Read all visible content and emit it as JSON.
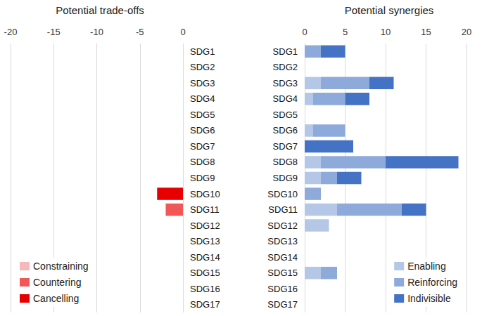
{
  "chart_data": [
    {
      "type": "bar",
      "title": "Potential trade-offs",
      "orientation": "horizontal",
      "stacked": true,
      "categories": [
        "SDG1",
        "SDG2",
        "SDG3",
        "SDG4",
        "SDG5",
        "SDG6",
        "SDG7",
        "SDG8",
        "SDG9",
        "SDG10",
        "SDG11",
        "SDG12",
        "SDG13",
        "SDG14",
        "SDG15",
        "SDG16",
        "SDG17"
      ],
      "series": [
        {
          "name": "Constraining",
          "color": "#f6b8b8",
          "values": [
            0,
            0,
            0,
            0,
            0,
            0,
            0,
            0,
            0,
            0,
            0,
            0,
            0,
            0,
            0,
            0,
            0
          ]
        },
        {
          "name": "Countering",
          "color": "#f25757",
          "values": [
            0,
            0,
            0,
            0,
            0,
            0,
            0,
            0,
            0,
            0,
            -2,
            0,
            0,
            0,
            0,
            0,
            0
          ]
        },
        {
          "name": "Cancelling",
          "color": "#e60000",
          "values": [
            0,
            0,
            0,
            0,
            0,
            0,
            0,
            0,
            0,
            -3,
            0,
            0,
            0,
            0,
            0,
            0,
            0
          ]
        }
      ],
      "xlim": [
        -20,
        0
      ],
      "xticks": [
        -20,
        -15,
        -10,
        -5,
        0
      ],
      "grid": true,
      "legend": "lower left"
    },
    {
      "type": "bar",
      "title": "Potential synergies",
      "orientation": "horizontal",
      "stacked": true,
      "categories": [
        "SDG1",
        "SDG2",
        "SDG3",
        "SDG4",
        "SDG5",
        "SDG6",
        "SDG7",
        "SDG8",
        "SDG9",
        "SDG10",
        "SDG11",
        "SDG12",
        "SDG13",
        "SDG14",
        "SDG15",
        "SDG16",
        "SDG17"
      ],
      "series": [
        {
          "name": "Enabling",
          "color": "#b4c7e7",
          "values": [
            0,
            0,
            2,
            1,
            0,
            1,
            0,
            2,
            2,
            0,
            4,
            3,
            0,
            0,
            2,
            0,
            0
          ]
        },
        {
          "name": "Reinforcing",
          "color": "#8eaadb",
          "values": [
            2,
            0,
            6,
            4,
            0,
            4,
            0,
            8,
            2,
            2,
            8,
            0,
            0,
            0,
            2,
            0,
            0
          ]
        },
        {
          "name": "Indivisible",
          "color": "#4472c4",
          "values": [
            3,
            0,
            3,
            3,
            0,
            0,
            6,
            9,
            3,
            0,
            3,
            0,
            0,
            0,
            0,
            0,
            0
          ]
        }
      ],
      "xlim": [
        0,
        20
      ],
      "xticks": [
        0,
        5,
        10,
        15,
        20
      ],
      "grid": true,
      "legend": "lower right"
    }
  ]
}
